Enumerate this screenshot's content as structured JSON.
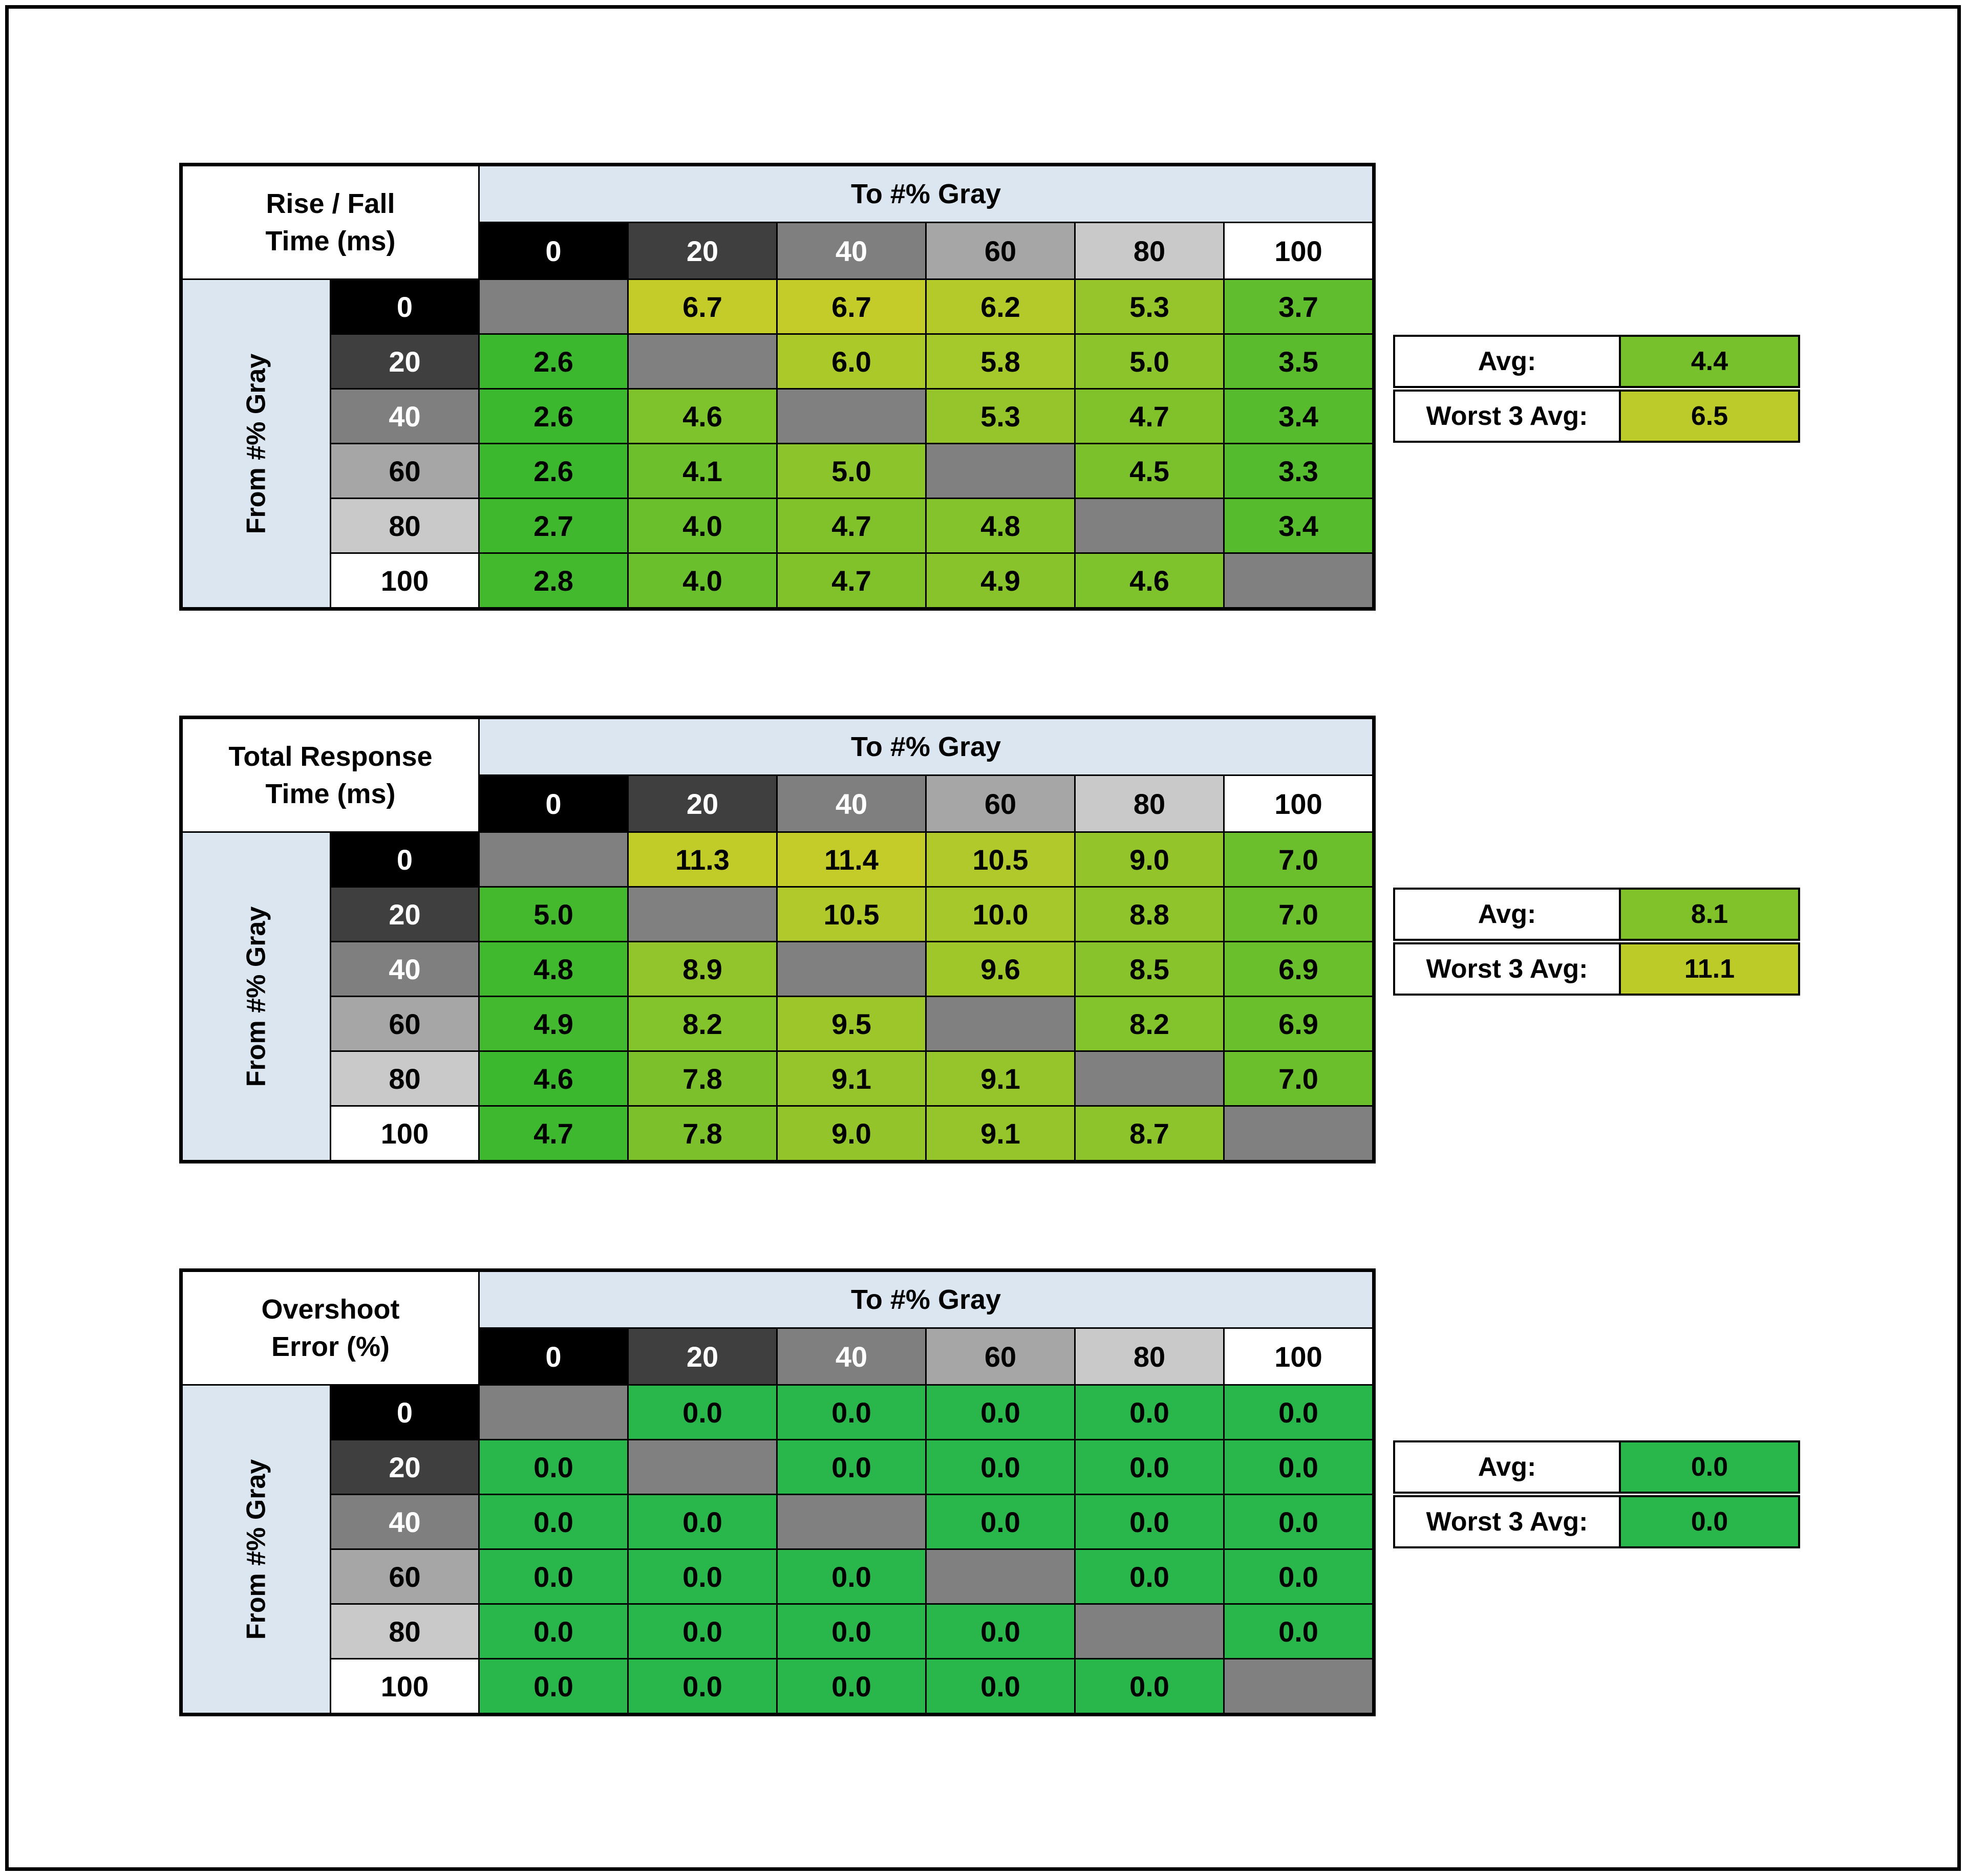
{
  "frame": {
    "border_color": "#000000",
    "background": "#ffffff"
  },
  "shared": {
    "col_axis_label": "To #% Gray",
    "row_axis_label": "From #% Gray",
    "categories": [
      "0",
      "20",
      "40",
      "60",
      "80",
      "100"
    ],
    "header_bg": [
      "#000000",
      "#3f3f3f",
      "#7f7f7f",
      "#a6a6a6",
      "#c9c9c9",
      "#ffffff"
    ],
    "header_fg": [
      "#ffffff",
      "#ffffff",
      "#ffffff",
      "#000000",
      "#000000",
      "#000000"
    ],
    "band_color": "#dce6f1",
    "diagonal_color": "#808080",
    "grid_line_color": "#000000",
    "avg_label": "Avg:",
    "worst_label": "Worst 3 Avg:"
  },
  "chart_data": [
    {
      "type": "heatmap",
      "title_lines": [
        "Rise / Fall",
        "Time (ms)"
      ],
      "col_axis_label": "To #% Gray",
      "row_axis_label": "From #% Gray",
      "categories": [
        "0",
        "20",
        "40",
        "60",
        "80",
        "100"
      ],
      "rows": [
        [
          null,
          6.7,
          6.7,
          6.2,
          5.3,
          3.7
        ],
        [
          2.6,
          null,
          6.0,
          5.8,
          5.0,
          3.5
        ],
        [
          2.6,
          4.6,
          null,
          5.3,
          4.7,
          3.4
        ],
        [
          2.6,
          4.1,
          5.0,
          null,
          4.5,
          3.3
        ],
        [
          2.7,
          4.0,
          4.7,
          4.8,
          null,
          3.4
        ],
        [
          2.8,
          4.0,
          4.7,
          4.9,
          4.6,
          null
        ]
      ],
      "summary": {
        "avg": "4.4",
        "worst3_avg": "6.5"
      },
      "color_scale": {
        "min": 2.6,
        "max": 6.7,
        "start": "#3cb82e",
        "end": "#c3cc29"
      }
    },
    {
      "type": "heatmap",
      "title_lines": [
        "Total Response",
        "Time (ms)"
      ],
      "col_axis_label": "To #% Gray",
      "row_axis_label": "From #% Gray",
      "categories": [
        "0",
        "20",
        "40",
        "60",
        "80",
        "100"
      ],
      "rows": [
        [
          null,
          11.3,
          11.4,
          10.5,
          9.0,
          7.0
        ],
        [
          5.0,
          null,
          10.5,
          10.0,
          8.8,
          7.0
        ],
        [
          4.8,
          8.9,
          null,
          9.6,
          8.5,
          6.9
        ],
        [
          4.9,
          8.2,
          9.5,
          null,
          8.2,
          6.9
        ],
        [
          4.6,
          7.8,
          9.1,
          9.1,
          null,
          7.0
        ],
        [
          4.7,
          7.8,
          9.0,
          9.1,
          8.7,
          null
        ]
      ],
      "summary": {
        "avg": "8.1",
        "worst3_avg": "11.1"
      },
      "color_scale": {
        "min": 4.6,
        "max": 11.4,
        "start": "#3cb82e",
        "end": "#c3cc29"
      }
    },
    {
      "type": "heatmap",
      "title_lines": [
        "Overshoot",
        "Error (%)"
      ],
      "col_axis_label": "To #% Gray",
      "row_axis_label": "From #% Gray",
      "categories": [
        "0",
        "20",
        "40",
        "60",
        "80",
        "100"
      ],
      "rows": [
        [
          null,
          0.0,
          0.0,
          0.0,
          0.0,
          0.0
        ],
        [
          0.0,
          null,
          0.0,
          0.0,
          0.0,
          0.0
        ],
        [
          0.0,
          0.0,
          null,
          0.0,
          0.0,
          0.0
        ],
        [
          0.0,
          0.0,
          0.0,
          null,
          0.0,
          0.0
        ],
        [
          0.0,
          0.0,
          0.0,
          0.0,
          null,
          0.0
        ],
        [
          0.0,
          0.0,
          0.0,
          0.0,
          0.0,
          null
        ]
      ],
      "summary": {
        "avg": "0.0",
        "worst3_avg": "0.0"
      },
      "color_scale": {
        "min": 0,
        "max": 0,
        "fixed": "#29b64a"
      }
    }
  ]
}
